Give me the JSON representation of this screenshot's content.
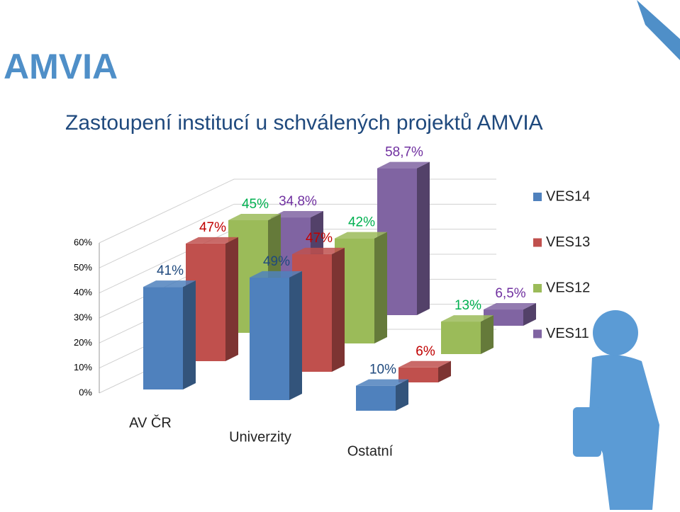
{
  "slide_title": "AMVIA",
  "chart_data": {
    "type": "bar3d",
    "title": "Zastoupení institucí u schválených projektů AMVIA",
    "categories": [
      "AV ČR",
      "Univerzity",
      "Ostatní"
    ],
    "series": [
      {
        "name": "VES14",
        "color": "#4f81bd",
        "label_color": "#1f497d",
        "values": [
          41,
          49,
          10
        ],
        "value_labels": [
          "41%",
          "49%",
          "10%"
        ]
      },
      {
        "name": "VES13",
        "color": "#c0504d",
        "label_color": "#c00000",
        "values": [
          47,
          47,
          6
        ],
        "value_labels": [
          "47%",
          "47%",
          "6%"
        ]
      },
      {
        "name": "VES12",
        "color": "#9bbb59",
        "label_color": "#00b050",
        "values": [
          45,
          42,
          13
        ],
        "value_labels": [
          "45%",
          "42%",
          "13%"
        ]
      },
      {
        "name": "VES11",
        "color": "#8064a2",
        "label_color": "#7030a0",
        "values": [
          34.8,
          58.7,
          6.5
        ],
        "value_labels": [
          "34,8%",
          "58,7%",
          "6,5%"
        ]
      }
    ],
    "ylim": [
      0,
      60
    ],
    "yticks": [
      {
        "value": 0,
        "label": "0%"
      },
      {
        "value": 10,
        "label": "10%"
      },
      {
        "value": 20,
        "label": "20%"
      },
      {
        "value": 30,
        "label": "30%"
      },
      {
        "value": 40,
        "label": "40%"
      },
      {
        "value": 50,
        "label": "50%"
      },
      {
        "value": 60,
        "label": "60%"
      }
    ],
    "grid": true,
    "legend": "right"
  }
}
